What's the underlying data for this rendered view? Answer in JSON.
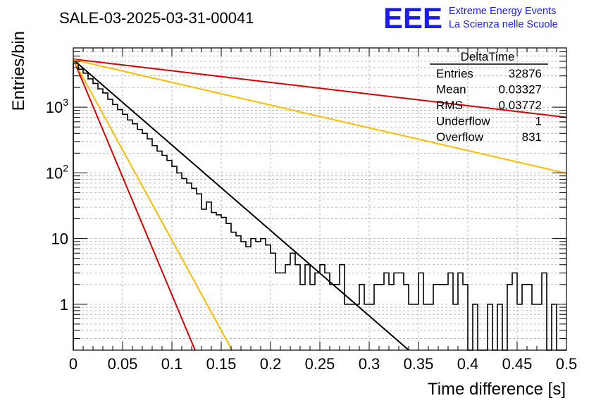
{
  "chart_data": {
    "type": "histogram",
    "title": "SALE-03-2025-03-31-00041",
    "xlabel": "Time difference [s]",
    "ylabel": "Entries/bin",
    "xlim": [
      0,
      0.5
    ],
    "ylim": [
      0.2,
      8000
    ],
    "y_scale": "log",
    "grid": true,
    "x_ticks": [
      "0",
      "0.05",
      "0.1",
      "0.15",
      "0.2",
      "0.25",
      "0.3",
      "0.35",
      "0.4",
      "0.45",
      "0.5"
    ],
    "y_tick_labels": [
      {
        "value": 1,
        "base": "1",
        "exp": ""
      },
      {
        "value": 10,
        "base": "10",
        "exp": ""
      },
      {
        "value": 100,
        "base": "10",
        "exp": "2"
      },
      {
        "value": 1000,
        "base": "10",
        "exp": "3"
      }
    ],
    "histogram": {
      "bin_width": 0.005,
      "counts": [
        4700,
        3800,
        3300,
        2700,
        2300,
        1900,
        1650,
        1320,
        1100,
        920,
        780,
        640,
        560,
        460,
        400,
        330,
        260,
        215,
        185,
        155,
        126,
        100,
        82,
        70,
        58,
        48,
        28,
        36,
        25,
        23,
        21,
        17,
        12.5,
        11,
        9,
        7.5,
        10,
        9,
        10,
        8,
        6,
        3,
        3,
        4,
        6,
        4,
        2,
        4,
        2,
        3,
        4,
        3,
        2,
        2,
        4,
        1,
        1,
        1,
        2,
        1,
        1,
        2,
        2,
        3,
        2,
        3,
        3,
        2,
        1,
        1,
        3,
        1,
        1,
        2,
        2,
        2,
        3,
        1,
        3,
        2,
        0,
        1,
        0,
        0,
        1,
        0,
        1,
        0,
        2,
        3,
        1,
        2,
        2,
        1,
        1,
        3,
        0,
        1,
        0,
        0
      ]
    },
    "fits": [
      {
        "color": "#000000",
        "y0": 5300,
        "tau": 0.0334
      },
      {
        "color": "#dd0000",
        "y0": 5400,
        "tau": 0.0121
      },
      {
        "color": "#ffbb00",
        "y0": 5300,
        "tau": 0.0158
      },
      {
        "color": "#dd0000",
        "y0": 5400,
        "tau": 0.245
      },
      {
        "color": "#ffbb00",
        "y0": 5300,
        "tau": 0.1255
      }
    ]
  },
  "stats_box": {
    "title": "DeltaTime",
    "rows": [
      {
        "label": "Entries",
        "value": "32876"
      },
      {
        "label": "Mean",
        "value": "0.03327"
      },
      {
        "label": "RMS",
        "value": "0.03772"
      },
      {
        "label": "Underflow",
        "value": "1"
      },
      {
        "label": "Overflow",
        "value": "831"
      }
    ]
  },
  "logo": {
    "text": "EEE",
    "line1": "Extreme Energy Events",
    "line2": "La Scienza nelle Scuole",
    "color": "#1a1aff"
  }
}
